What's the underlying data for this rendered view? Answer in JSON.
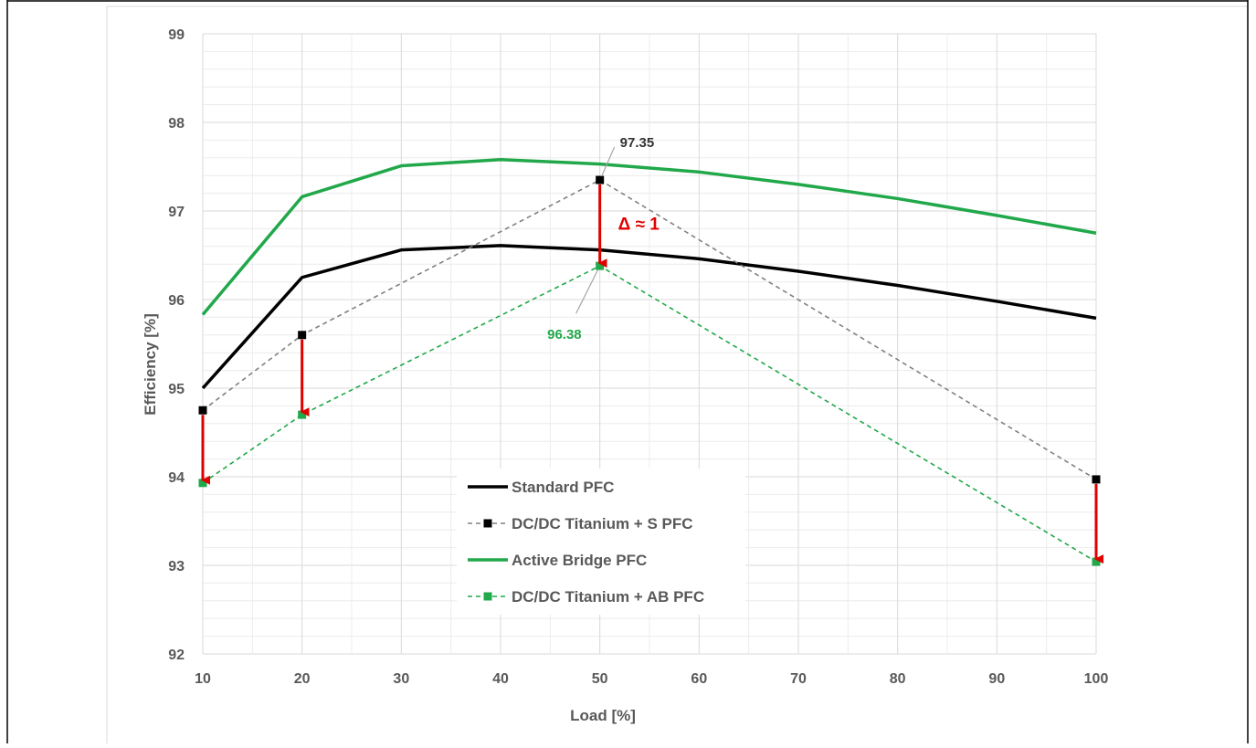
{
  "chart_data": {
    "type": "line",
    "title": "",
    "xlabel": "Load [%]",
    "ylabel": "Efficiency [%]",
    "x": [
      10,
      20,
      30,
      40,
      50,
      60,
      70,
      80,
      90,
      100
    ],
    "xticks": [
      "10",
      "20",
      "30",
      "40",
      "50",
      "60",
      "70",
      "80",
      "90",
      "100"
    ],
    "ylim": [
      92,
      99
    ],
    "yticks": [
      "92",
      "93",
      "94",
      "95",
      "96",
      "97",
      "98",
      "99"
    ],
    "grid": true,
    "legend_position": "bottom-center",
    "series": [
      {
        "name": "Standard PFC",
        "color": "#000000",
        "style": "solid",
        "x": [
          10,
          20,
          30,
          40,
          50,
          60,
          70,
          80,
          90,
          100
        ],
        "y": [
          95.0,
          96.25,
          96.56,
          96.61,
          96.56,
          96.46,
          96.32,
          96.16,
          95.98,
          95.79
        ]
      },
      {
        "name": "DC/DC Titanium + S PFC",
        "color": "#808080",
        "marker_color": "#000000",
        "style": "dashed",
        "markers": true,
        "x": [
          10,
          20,
          50,
          100
        ],
        "y": [
          94.75,
          95.6,
          97.35,
          93.97
        ]
      },
      {
        "name": "Active Bridge PFC",
        "color": "#21a84a",
        "style": "solid",
        "x": [
          10,
          20,
          30,
          40,
          50,
          60,
          70,
          80,
          90,
          100
        ],
        "y": [
          95.83,
          97.16,
          97.51,
          97.58,
          97.53,
          97.44,
          97.3,
          97.14,
          96.95,
          96.75
        ]
      },
      {
        "name": "DC/DC Titanium + AB PFC",
        "color": "#21a84a",
        "marker_color": "#21a84a",
        "style": "dashed",
        "markers": true,
        "x": [
          10,
          20,
          50,
          100
        ],
        "y": [
          93.93,
          94.7,
          96.38,
          93.04
        ]
      }
    ],
    "arrows": [
      {
        "x": 10,
        "from": 94.75,
        "to": 93.93
      },
      {
        "x": 20,
        "from": 95.6,
        "to": 94.7
      },
      {
        "x": 50,
        "from": 97.35,
        "to": 96.38
      },
      {
        "x": 100,
        "from": 93.97,
        "to": 93.04
      }
    ],
    "annotations": [
      {
        "text": "97.35",
        "x": 50,
        "y": 97.35,
        "color": "#333333"
      },
      {
        "text": "96.38",
        "x": 50,
        "y": 96.38,
        "color": "#21a84a"
      },
      {
        "text": "Δ ≈ 1",
        "x": 50,
        "y": 96.87,
        "color": "#e00000"
      }
    ],
    "colors": {
      "axis_text": "#595959",
      "grid_major": "#d9d9d9",
      "grid_minor": "#ececec",
      "arrow": "#e00000"
    }
  }
}
